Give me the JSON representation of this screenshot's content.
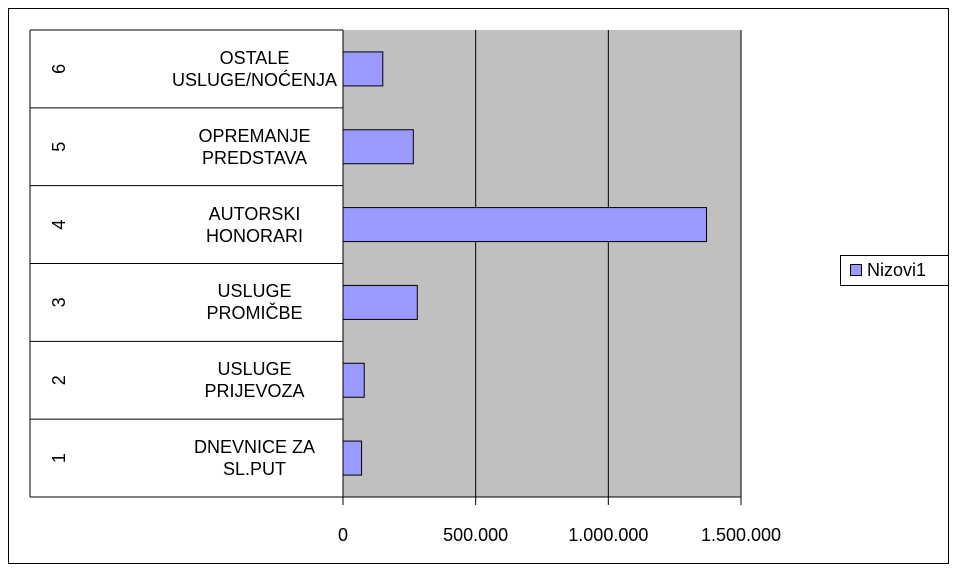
{
  "chart_data": {
    "type": "bar",
    "orientation": "horizontal",
    "categories": [
      "DNEVNICE ZA SL.PUT",
      "USLUGE PRIJEVOZA",
      "USLUGE PROMIČBE",
      "AUTORSKI HONORARI",
      "OPREMANJE PREDSTAVA",
      "OSTALE USLUGE/NOĆENJA"
    ],
    "category_groups": [
      "1",
      "2",
      "3",
      "4",
      "5",
      "6"
    ],
    "series": [
      {
        "name": "Nizovi1",
        "color": "#9999ff",
        "values": [
          70000,
          80000,
          280000,
          1370000,
          265000,
          150000
        ]
      }
    ],
    "xlim": [
      0,
      1500000
    ],
    "xticks": [
      0,
      {
        "value": 500000,
        "label": "500.000"
      },
      {
        "value": 1000000,
        "label": "1.000.000"
      },
      {
        "value": 1500000,
        "label": "1.500.000"
      }
    ],
    "grid": true,
    "legend": "right"
  }
}
